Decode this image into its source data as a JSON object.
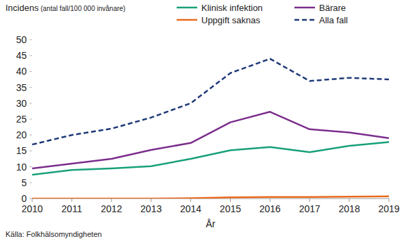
{
  "chart_data": {
    "type": "line",
    "y_label": "Incidens (antal fall/100 000 invånare)",
    "x_label": "År",
    "source": "Källa: Folkhälsomyndigheten",
    "x": [
      2010,
      2011,
      2012,
      2013,
      2014,
      2015,
      2016,
      2017,
      2018,
      2019
    ],
    "series": [
      {
        "name": "Klinisk infektion",
        "color": "#17a078",
        "line_style": "solid",
        "values": [
          7.5,
          9,
          9.5,
          10.2,
          12.5,
          15.2,
          16.2,
          14.6,
          16.6,
          17.8
        ]
      },
      {
        "name": "Bärare",
        "color": "#7b2d8c",
        "line_style": "solid",
        "values": [
          9.5,
          11,
          12.5,
          15.3,
          17.5,
          24,
          27.3,
          21.8,
          20.8,
          19
        ]
      },
      {
        "name": "Uppgift saknas",
        "color": "#ea6a1e",
        "line_style": "solid",
        "values": [
          0,
          0,
          0,
          0,
          0.1,
          0.4,
          0.5,
          0.5,
          0.6,
          0.7
        ]
      },
      {
        "name": "Alla fall",
        "color": "#1f3a78",
        "line_style": "dashed",
        "values": [
          17,
          20,
          22,
          25.5,
          30,
          39.5,
          44,
          37,
          38,
          37.5
        ]
      }
    ],
    "xlim": [
      2010,
      2019
    ],
    "xticks": [
      2010,
      2011,
      2012,
      2013,
      2014,
      2015,
      2016,
      2017,
      2018,
      2019
    ],
    "ylim": [
      0,
      50
    ],
    "yticks": [
      0,
      5,
      10,
      15,
      20,
      25,
      30,
      35,
      40,
      45,
      50
    ],
    "grid": false,
    "legend": "top-right"
  }
}
